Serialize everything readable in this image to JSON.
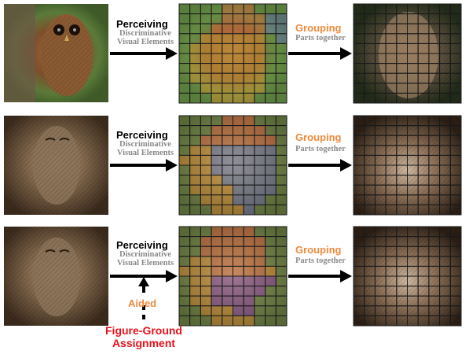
{
  "rows": [
    {
      "perceiving": "Perceiving",
      "perceiving_sub": "Discriminative Visual Elements",
      "grouping": "Grouping",
      "grouping_sub": "Parts together"
    },
    {
      "perceiving": "Perceiving",
      "perceiving_sub": "Discriminative Visual Elements",
      "grouping": "Grouping",
      "grouping_sub": "Parts together"
    },
    {
      "perceiving": "Perceiving",
      "perceiving_sub": "Discriminative Visual Elements",
      "grouping": "Grouping",
      "grouping_sub": "Parts together"
    }
  ],
  "aided_label": "Aided",
  "figure_ground_line1": "Figure-Ground",
  "figure_ground_line2": "Assignment",
  "colors": {
    "green": "#6f9a4c",
    "blue": "#6f86ad",
    "orange": "#d47a45",
    "yellow": "#d3a23a",
    "purple": "#8a5aa6",
    "accent_orange": "#f08a3c",
    "accent_red": "#e8101a"
  }
}
